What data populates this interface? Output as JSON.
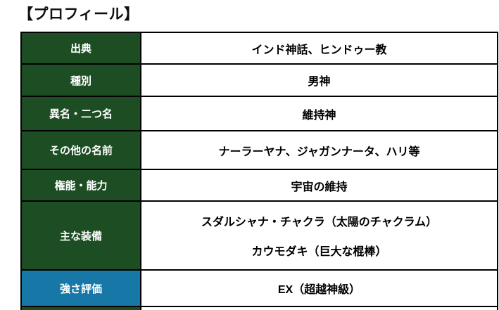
{
  "page": {
    "title": "【プロフィール】"
  },
  "colors": {
    "header_green": "#1d4d23",
    "header_blue": "#1777a6",
    "border": "#000000",
    "header_text": "#ffffff",
    "value_text": "#000000",
    "background": "#ffffff"
  },
  "table": {
    "rows": [
      {
        "label": "出典",
        "value": "インド神話、ヒンドゥー教"
      },
      {
        "label": "種別",
        "value": "男神"
      },
      {
        "label": "異名・二つ名",
        "value": "維持神"
      },
      {
        "label": "その他の名前",
        "value": "ナーラーヤナ、ジャガンナータ、ハリ等"
      },
      {
        "label": "権能・能力",
        "value": "宇宙の維持"
      },
      {
        "label": "主な装備",
        "value_lines": [
          "スダルシャナ・チャクラ（太陽のチャクラム）",
          "カウモダキ（巨大な棍棒）"
        ]
      },
      {
        "label": "強さ評価",
        "value": "EX（超越神級）"
      }
    ]
  }
}
